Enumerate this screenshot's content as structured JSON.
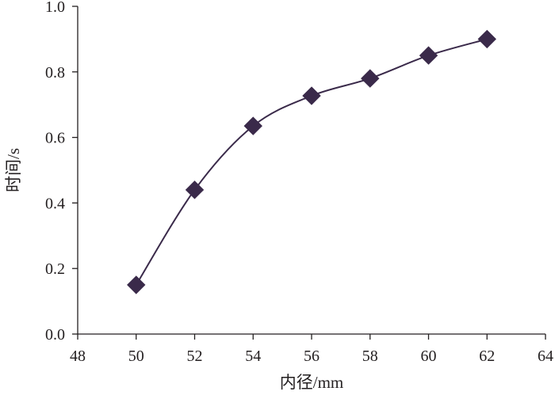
{
  "chart_data": {
    "type": "line",
    "xlabel": "内径/mm",
    "ylabel": "时间/s",
    "xlim": [
      48,
      64
    ],
    "ylim": [
      0.0,
      1.0
    ],
    "x_ticks": [
      "48",
      "50",
      "52",
      "54",
      "56",
      "58",
      "60",
      "62",
      "64"
    ],
    "y_ticks": [
      "0.0",
      "0.2",
      "0.4",
      "0.6",
      "0.8",
      "1.0"
    ],
    "grid": false,
    "smooth": true,
    "marker": "diamond",
    "colors": {
      "line": "#3a2a4a",
      "marker": "#3a2a4a",
      "axis": "#231f20"
    },
    "series": [
      {
        "x": [
          50,
          52,
          54,
          56,
          58,
          60,
          62
        ],
        "y": [
          0.15,
          0.44,
          0.635,
          0.727,
          0.78,
          0.85,
          0.9
        ]
      }
    ]
  }
}
